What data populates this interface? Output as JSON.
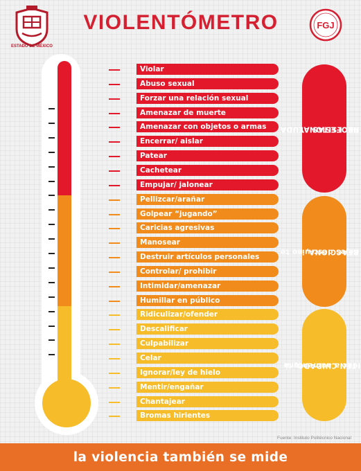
{
  "header": {
    "title": "VIOLENTÓMETRO",
    "left_logo_label": "ESTADO DE MÉXICO",
    "right_logo_text": "FGJ"
  },
  "colors": {
    "red": "#e3192b",
    "orange": "#f08b1c",
    "yellow": "#f6bc2a",
    "title_red": "#d42031",
    "footer_orange": "#ea6f26"
  },
  "items": [
    {
      "label": "Violar",
      "level": "red"
    },
    {
      "label": "Abuso sexual",
      "level": "red"
    },
    {
      "label": "Forzar una relación sexual",
      "level": "red"
    },
    {
      "label": "Amenazar de muerte",
      "level": "red"
    },
    {
      "label": "Amenazar con objetos o armas",
      "level": "red"
    },
    {
      "label": "Encerrar/ aislar",
      "level": "red"
    },
    {
      "label": "Patear",
      "level": "red"
    },
    {
      "label": "Cachetear",
      "level": "red"
    },
    {
      "label": "Empujar/ jalonear",
      "level": "red"
    },
    {
      "label": "Pellizcar/arañar",
      "level": "orange"
    },
    {
      "label": "Golpear “jugando”",
      "level": "orange"
    },
    {
      "label": "Caricias agresivas",
      "level": "orange"
    },
    {
      "label": "Manosear",
      "level": "orange"
    },
    {
      "label": "Destruir artículos personales",
      "level": "orange"
    },
    {
      "label": "Controlar/ prohibir",
      "level": "orange"
    },
    {
      "label": "Intimidar/amenazar",
      "level": "orange"
    },
    {
      "label": "Humillar en público",
      "level": "orange"
    },
    {
      "label": "Ridiculizar/ofender",
      "level": "yellow"
    },
    {
      "label": "Descalificar",
      "level": "yellow"
    },
    {
      "label": "Culpabilizar",
      "level": "yellow"
    },
    {
      "label": "Celar",
      "level": "yellow"
    },
    {
      "label": "Ignorar/ley de hielo",
      "level": "yellow"
    },
    {
      "label": "Mentir/engañar",
      "level": "yellow"
    },
    {
      "label": "Chantajear",
      "level": "yellow"
    },
    {
      "label": "Bromas hirientes",
      "level": "yellow"
    }
  ],
  "zones": [
    {
      "key": "red",
      "line1": "NECESITAS AYUDA",
      "line2": "PROFESIONAL"
    },
    {
      "key": "orange",
      "line1": "REACCIONA, no te",
      "line2": "dejes destruir"
    },
    {
      "key": "yellow",
      "line1": "TEN CUIDADO, la",
      "line2": "violencia aumentará"
    }
  ],
  "source": "Fuente: Instituto Politécnico Nacional",
  "footer": "la violencia también se mide"
}
